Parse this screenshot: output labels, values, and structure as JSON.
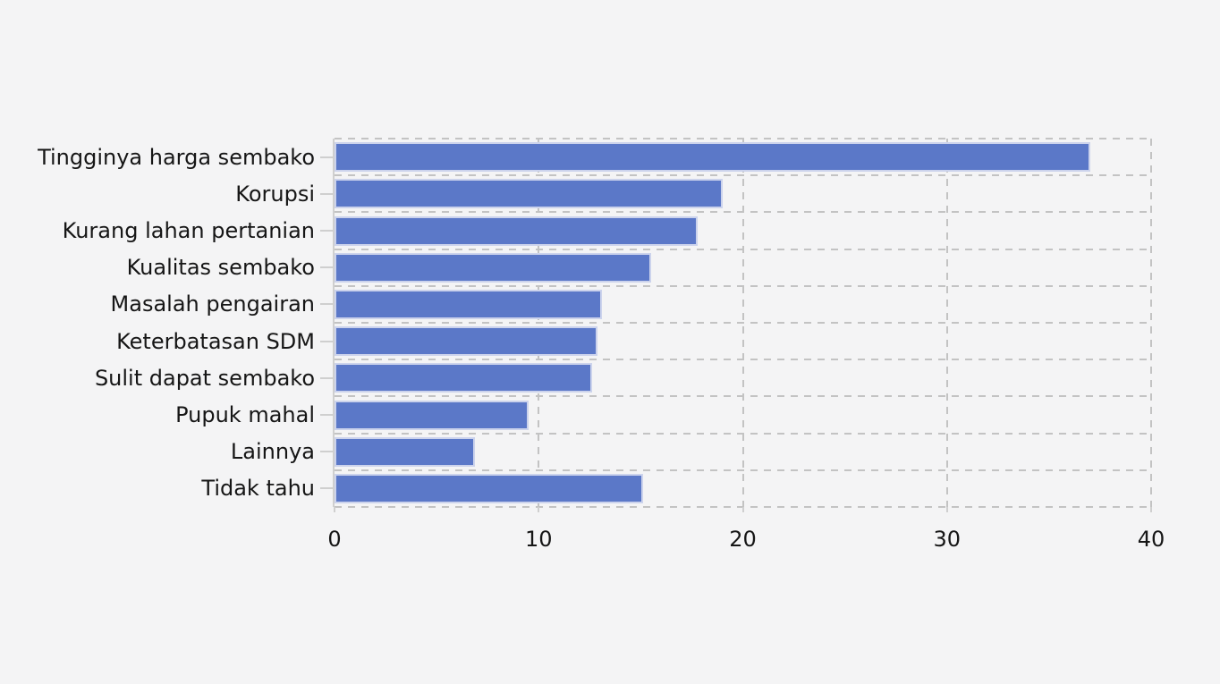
{
  "background_color": "#f4f4f5",
  "chart_data": {
    "type": "bar",
    "orientation": "horizontal",
    "title": "",
    "xlabel": "",
    "ylabel": "",
    "categories": [
      "Tingginya harga sembako",
      "Korupsi",
      "Kurang lahan pertanian",
      "Kualitas sembako",
      "Masalah pengairan",
      "Keterbatasan SDM",
      "Sulit dapat sembako",
      "Pupuk mahal",
      "Lainnya",
      "Tidak tahu"
    ],
    "values": [
      37.0,
      19.0,
      17.8,
      15.5,
      13.1,
      12.9,
      12.6,
      9.5,
      6.9,
      15.1
    ],
    "xlim": [
      0,
      40
    ],
    "x_tick_labels": [
      "0",
      "10",
      "20",
      "30",
      "40"
    ],
    "x_ticks": [
      0,
      10,
      20,
      30,
      40
    ],
    "grid": "dashed",
    "legend": "none",
    "colors": {
      "bar_fill": "#5b78c8",
      "bar_edge": "#ccd3ec",
      "grid": "#c3c3c3",
      "axis": "#cfcfcf",
      "text": "#161616"
    }
  }
}
